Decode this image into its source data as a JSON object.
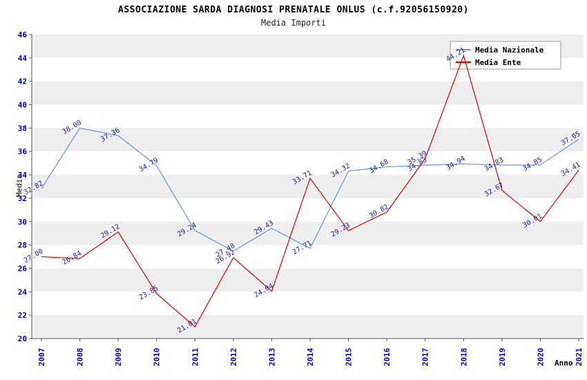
{
  "title": "ASSOCIAZIONE SARDA DIAGNOSI PRENATALE ONLUS (c.f.92056150920)",
  "subtitle": "Media Importi",
  "axes": {
    "y_title": "Media",
    "x_title": "Anno",
    "y_min": 20,
    "y_max": 46,
    "y_step": 2,
    "tick_color": "#0000cc",
    "axis_line_color": "#555555"
  },
  "legend": {
    "position": "top-right",
    "background": "#ffffff",
    "border_color": "#999999",
    "text_color": "#000000"
  },
  "chart_data": {
    "type": "line",
    "title": "Media Importi",
    "xlabel": "Anno",
    "ylabel": "Media",
    "ylim": [
      20,
      46
    ],
    "y_step": 2,
    "grid": "alternating-horizontal-bands",
    "band_colors": [
      "#eeeeee",
      "#ffffff"
    ],
    "point_label_color": "#222299",
    "legend_position": "top-right",
    "categories": [
      "2007",
      "2008",
      "2009",
      "2010",
      "2011",
      "2012",
      "2013",
      "2014",
      "2015",
      "2016",
      "2017",
      "2018",
      "2019",
      "2020",
      "2021"
    ],
    "series": [
      {
        "name": "Media Nazionale",
        "color": "#6699cc",
        "values": [
          32.82,
          38.0,
          37.36,
          34.79,
          29.24,
          27.48,
          29.43,
          27.71,
          34.32,
          34.68,
          34.83,
          34.94,
          34.83,
          34.85,
          37.05
        ]
      },
      {
        "name": "Media Ente",
        "color": "#dd0000",
        "values": [
          27.0,
          26.84,
          29.12,
          23.85,
          21.01,
          26.92,
          24.04,
          33.71,
          29.23,
          30.82,
          35.39,
          44.21,
          32.67,
          30.01,
          34.41
        ]
      }
    ]
  }
}
